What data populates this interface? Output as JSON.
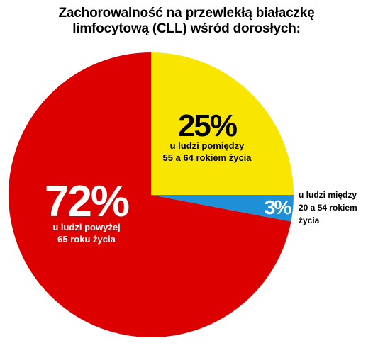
{
  "chart_data": {
    "type": "pie",
    "title_lines": [
      "Zachorowalność na przewlekłą białaczkę",
      "limfocytową (CLL) wśród dorosłych:"
    ],
    "slices": [
      {
        "value": 25,
        "label": "25%",
        "desc": [
          "u ludzi pomiędzy",
          "55 a 64 rokiem życia"
        ],
        "color": "#f8e600",
        "text_color": "#000000"
      },
      {
        "value": 3,
        "label": "3%",
        "desc": [
          "u ludzi między",
          "20 a 54 rokiem",
          "życia"
        ],
        "color": "#1e90d8",
        "text_color": "#ffffff"
      },
      {
        "value": 72,
        "label": "72%",
        "desc": [
          "u ludzi powyżej",
          "65 roku życia"
        ],
        "color": "#dd0000",
        "text_color": "#ffffff"
      }
    ]
  }
}
